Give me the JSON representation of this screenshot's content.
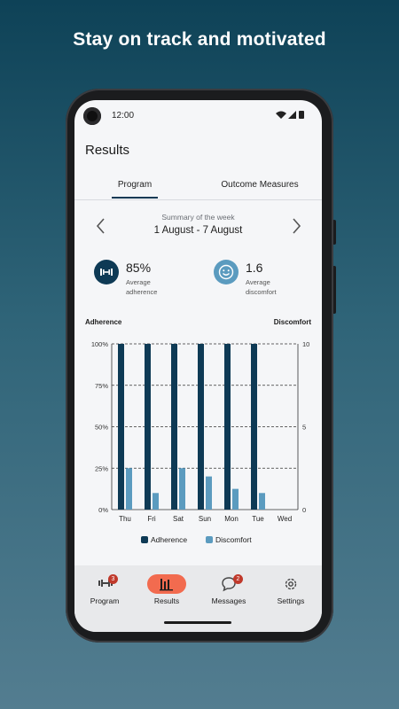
{
  "headline": "Stay on track and motivated",
  "status_bar": {
    "time": "12:00"
  },
  "page_title": "Results",
  "tabs": [
    {
      "label": "Program",
      "active": true
    },
    {
      "label": "Outcome Measures",
      "active": false
    }
  ],
  "summary": {
    "caption": "Summary of the week",
    "range": "1 August - 7 August"
  },
  "stats": [
    {
      "value": "85%",
      "label_line1": "Average",
      "label_line2": "adherence",
      "icon": "dumbbell-icon"
    },
    {
      "value": "1.6",
      "label_line1": "Average",
      "label_line2": "discomfort",
      "icon": "smiley-icon"
    }
  ],
  "colors": {
    "adherence": "#0e3a55",
    "discomfort": "#5b9bbf",
    "accent": "#f26b4f"
  },
  "chart_data": {
    "type": "bar",
    "y_left_label": "Adherence",
    "y_right_label": "Discomfort",
    "left_ticks": [
      "100%",
      "75%",
      "50%",
      "25%",
      "0%"
    ],
    "right_ticks": [
      "10",
      "5",
      "0"
    ],
    "ylim_left": [
      0,
      100
    ],
    "ylim_right": [
      0,
      10
    ],
    "categories": [
      "Thu",
      "Fri",
      "Sat",
      "Sun",
      "Mon",
      "Tue",
      "Wed"
    ],
    "series": [
      {
        "name": "Adherence",
        "axis": "left",
        "values": [
          100,
          100,
          100,
          100,
          100,
          100,
          0
        ]
      },
      {
        "name": "Discomfort",
        "axis": "right",
        "values": [
          2.5,
          1.0,
          2.5,
          2.0,
          1.25,
          1.0,
          0
        ]
      }
    ]
  },
  "bottom_nav": [
    {
      "label": "Program",
      "icon": "dumbbell-icon",
      "badge": "3",
      "active": false
    },
    {
      "label": "Results",
      "icon": "bar-chart-icon",
      "badge": "",
      "active": true
    },
    {
      "label": "Messages",
      "icon": "chat-bubble-icon",
      "badge": "2",
      "active": false
    },
    {
      "label": "Settings",
      "icon": "gear-icon",
      "badge": "",
      "active": false
    }
  ]
}
